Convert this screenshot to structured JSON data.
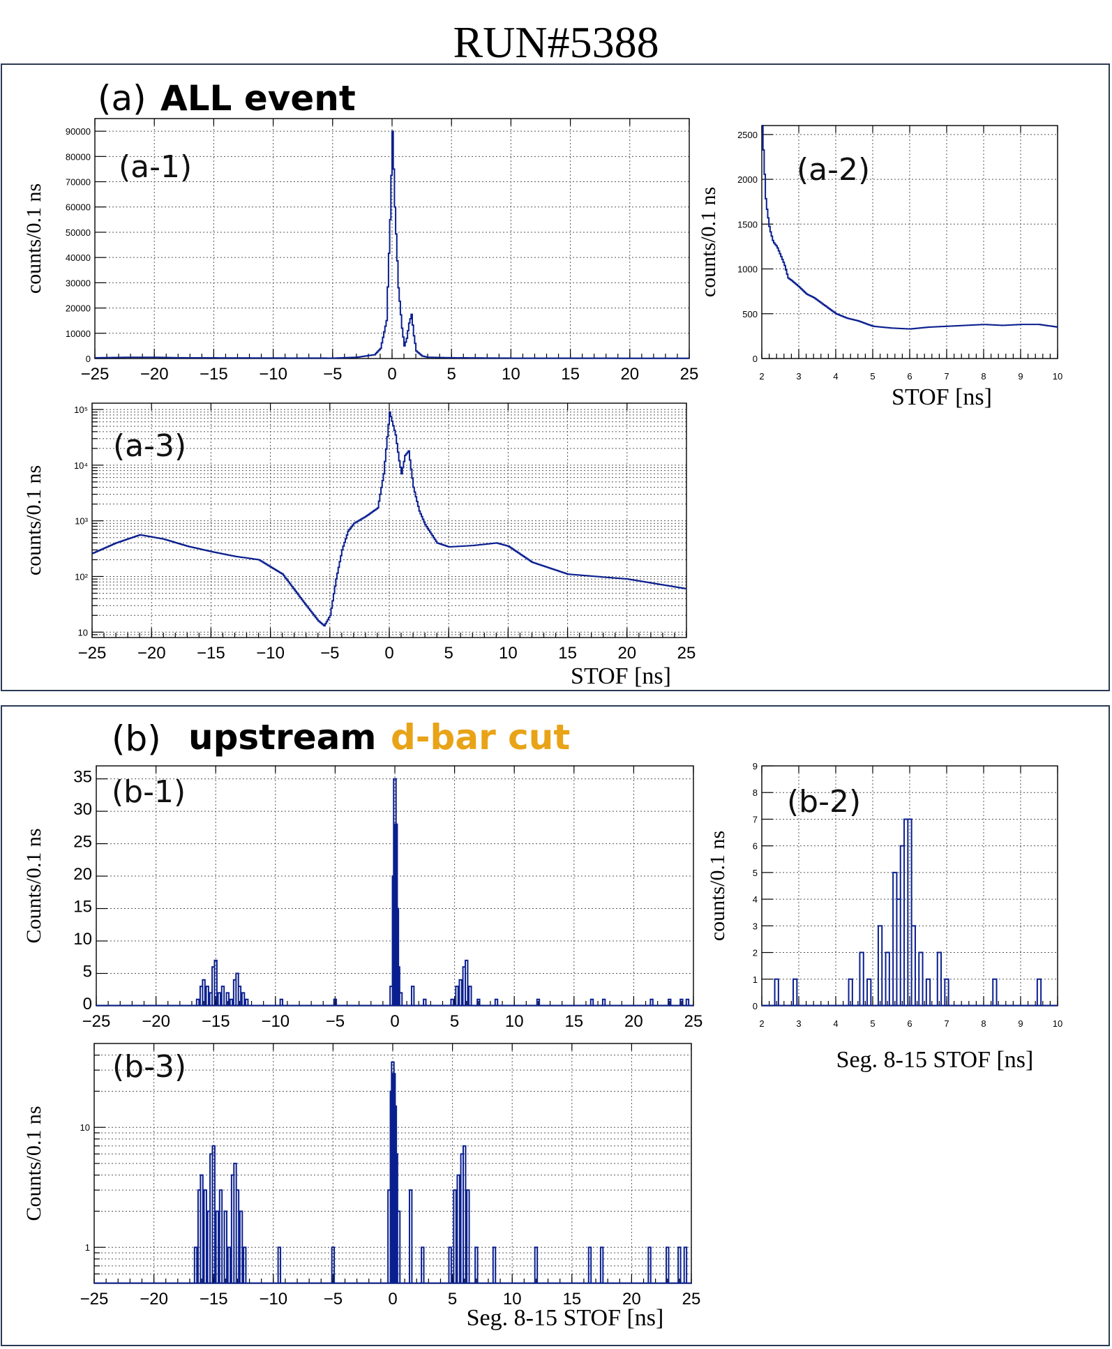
{
  "figure": {
    "title": "RUN#5388",
    "section_a": {
      "label": "(a)",
      "title": "ALL event",
      "title_color": "#000000"
    },
    "section_b": {
      "label": "(b)",
      "title_part1": "upstream",
      "title_part2": "d-bar cut",
      "title_part1_color": "#000000",
      "title_part2_color": "#e8a317"
    },
    "colors": {
      "histogram": "#0a1f8f",
      "frame": "#000000",
      "grid": "#555555"
    }
  },
  "chart_data": [
    {
      "id": "a1",
      "panel_label": "(a-1)",
      "type": "histogram",
      "yscale": "linear",
      "ylabel": "counts/0.1 ns",
      "xlabel": "",
      "xlim": [
        -25,
        25
      ],
      "ylim": [
        0,
        95000
      ],
      "xticks": [
        -25,
        -20,
        -15,
        -10,
        -5,
        0,
        5,
        10,
        15,
        20,
        25
      ],
      "xtick_labels": [
        "−25",
        "−20",
        "−15",
        "−10",
        "−5",
        "0",
        "5",
        "10",
        "15",
        "20",
        "25"
      ],
      "yticks": [
        0,
        10000,
        20000,
        30000,
        40000,
        50000,
        60000,
        70000,
        80000,
        90000
      ],
      "ytick_labels": [
        "0",
        "10000",
        "20000",
        "30000",
        "40000",
        "50000",
        "60000",
        "70000",
        "80000",
        "90000"
      ],
      "series": [
        {
          "x": [
            -25,
            -22,
            -20,
            -18,
            -10,
            -5,
            -3,
            -1.5,
            -1,
            -0.5,
            -0.2,
            0,
            0.2,
            0.5,
            0.8,
            1,
            1.2,
            1.4,
            1.6,
            1.8,
            2,
            2.5,
            3,
            5,
            10,
            25
          ],
          "y": [
            300,
            500,
            500,
            300,
            200,
            150,
            500,
            1500,
            4000,
            15000,
            55000,
            90000,
            60000,
            28000,
            12000,
            5000,
            8000,
            14000,
            17500,
            9000,
            3000,
            1000,
            500,
            300,
            150,
            100
          ]
        }
      ]
    },
    {
      "id": "a2",
      "panel_label": "(a-2)",
      "type": "histogram",
      "yscale": "linear",
      "ylabel": "counts/0.1 ns",
      "xlabel": "STOF    [ns]",
      "xlim": [
        2,
        10
      ],
      "ylim": [
        0,
        2600
      ],
      "xticks": [
        2,
        3,
        4,
        5,
        6,
        7,
        8,
        9,
        10
      ],
      "xtick_labels": [
        "2",
        "3",
        "4",
        "5",
        "6",
        "7",
        "8",
        "9",
        "10"
      ],
      "yticks": [
        0,
        500,
        1000,
        1500,
        2000,
        2500
      ],
      "ytick_labels": [
        "0",
        "500",
        "1000",
        "1500",
        "2000",
        "2500"
      ],
      "series": [
        {
          "x": [
            2,
            2.1,
            2.2,
            2.3,
            2.4,
            2.5,
            2.6,
            2.7,
            2.8,
            3,
            3.2,
            3.4,
            3.6,
            3.8,
            4,
            4.3,
            4.6,
            5,
            5.5,
            6,
            6.5,
            7,
            7.5,
            8,
            8.5,
            9,
            9.5,
            10
          ],
          "y": [
            2600,
            1750,
            1450,
            1300,
            1250,
            1150,
            1050,
            900,
            870,
            800,
            720,
            680,
            620,
            560,
            500,
            450,
            420,
            360,
            340,
            330,
            350,
            360,
            370,
            380,
            370,
            380,
            380,
            350
          ]
        }
      ]
    },
    {
      "id": "a3",
      "panel_label": "(a-3)",
      "type": "histogram",
      "yscale": "log",
      "ylabel": "counts/0.1 ns",
      "xlabel": "STOF    [ns]",
      "xlim": [
        -25,
        25
      ],
      "ylim": [
        8,
        130000
      ],
      "xticks": [
        -25,
        -20,
        -15,
        -10,
        -5,
        0,
        5,
        10,
        15,
        20,
        25
      ],
      "xtick_labels": [
        "−25",
        "−20",
        "−15",
        "−10",
        "−5",
        "0",
        "5",
        "10",
        "15",
        "20",
        "25"
      ],
      "yticks": [
        10,
        100,
        1000,
        10000,
        100000
      ],
      "ytick_labels": [
        "10",
        "10²",
        "10³",
        "10⁴",
        "10⁵"
      ],
      "series": [
        {
          "x": [
            -25,
            -23,
            -21,
            -19,
            -17,
            -15,
            -13,
            -11,
            -9,
            -7,
            -6,
            -5.5,
            -5,
            -4.5,
            -4,
            -3.5,
            -3,
            -2,
            -1,
            -0.5,
            0,
            0.5,
            0.8,
            1,
            1.3,
            1.6,
            2,
            2.5,
            3,
            4,
            5,
            7,
            9,
            10,
            12,
            15,
            20,
            25
          ],
          "y": [
            260,
            400,
            560,
            470,
            350,
            280,
            230,
            200,
            110,
            30,
            16,
            13,
            20,
            90,
            300,
            650,
            900,
            1200,
            1700,
            7000,
            90000,
            35000,
            12000,
            7000,
            15000,
            18000,
            4000,
            1500,
            850,
            400,
            340,
            360,
            400,
            350,
            180,
            110,
            90,
            60
          ]
        }
      ]
    },
    {
      "id": "b1",
      "panel_label": "(b-1)",
      "type": "histogram",
      "yscale": "linear",
      "ylabel": "Counts/0.1 ns",
      "xlabel": "",
      "xlim": [
        -25,
        25
      ],
      "ylim": [
        0,
        37
      ],
      "xticks": [
        -25,
        -20,
        -15,
        -10,
        -5,
        0,
        5,
        10,
        15,
        20,
        25
      ],
      "xtick_labels": [
        "−25",
        "−20",
        "−15",
        "−10",
        "−5",
        "0",
        "5",
        "10",
        "15",
        "20",
        "25"
      ],
      "yticks": [
        0,
        5,
        10,
        15,
        20,
        25,
        30,
        35
      ],
      "ytick_labels": [
        "0",
        "5",
        "10",
        "15",
        "20",
        "25",
        "30",
        "35"
      ],
      "series": [
        {
          "x": [
            -16.5,
            -16.2,
            -16,
            -15.7,
            -15.4,
            -15.2,
            -15,
            -14.7,
            -14.4,
            -14,
            -13.7,
            -13.4,
            -13.2,
            -13,
            -12.7,
            -12.4,
            -9.5,
            -5,
            -0.3,
            -0.1,
            0,
            0.1,
            0.2,
            0.3,
            0.5,
            1.5,
            2.5,
            4.8,
            5.2,
            5.5,
            5.8,
            6,
            6.3,
            7,
            8.5,
            12,
            16.5,
            17.5,
            21.5,
            23,
            24,
            24.5
          ],
          "y": [
            1,
            3,
            4,
            3,
            2,
            6,
            7,
            2,
            3,
            2,
            1,
            4,
            5,
            3,
            2,
            1,
            1,
            1,
            3,
            20,
            35,
            28,
            15,
            6,
            2,
            3,
            1,
            1,
            3,
            4,
            6,
            7,
            3,
            1,
            1,
            1,
            1,
            1,
            1,
            1,
            1,
            1
          ]
        }
      ]
    },
    {
      "id": "b2",
      "panel_label": "(b-2)",
      "type": "histogram",
      "yscale": "linear",
      "ylabel": "counts/0.1 ns",
      "xlabel": "Seg. 8-15  STOF    [ns]",
      "xlim": [
        2,
        10
      ],
      "ylim": [
        0,
        9
      ],
      "xticks": [
        2,
        3,
        4,
        5,
        6,
        7,
        8,
        9,
        10
      ],
      "xtick_labels": [
        "2",
        "3",
        "4",
        "5",
        "6",
        "7",
        "8",
        "9",
        "10"
      ],
      "yticks": [
        0,
        1,
        2,
        3,
        4,
        5,
        6,
        7,
        8,
        9
      ],
      "ytick_labels": [
        "0",
        "1",
        "2",
        "3",
        "4",
        "5",
        "6",
        "7",
        "8",
        "9"
      ],
      "series": [
        {
          "x": [
            2.4,
            2.9,
            4.4,
            4.7,
            4.9,
            5.2,
            5.4,
            5.6,
            5.7,
            5.8,
            5.9,
            6,
            6.1,
            6.3,
            6.5,
            6.8,
            7,
            8.3,
            9.5
          ],
          "y": [
            1,
            1,
            1,
            2,
            1,
            3,
            2,
            5,
            4,
            6,
            7,
            7,
            3,
            2,
            1,
            2,
            1,
            1,
            1
          ]
        }
      ]
    },
    {
      "id": "b3",
      "panel_label": "(b-3)",
      "type": "histogram",
      "yscale": "log",
      "ylabel": "Counts/0.1 ns",
      "xlabel": "Seg. 8-15    STOF    [ns]",
      "xlim": [
        -25,
        25
      ],
      "ylim": [
        0.5,
        50
      ],
      "xticks": [
        -25,
        -20,
        -15,
        -10,
        -5,
        0,
        5,
        10,
        15,
        20,
        25
      ],
      "xtick_labels": [
        "−25",
        "−20",
        "−15",
        "−10",
        "−5",
        "0",
        "5",
        "10",
        "15",
        "20",
        "25"
      ],
      "yticks": [
        1,
        10
      ],
      "ytick_labels": [
        "1",
        "10"
      ],
      "series": [
        {
          "x": [
            -16.5,
            -16.2,
            -16,
            -15.7,
            -15.4,
            -15.2,
            -15,
            -14.7,
            -14.4,
            -14,
            -13.7,
            -13.4,
            -13.2,
            -13,
            -12.7,
            -12.4,
            -9.5,
            -5,
            -0.3,
            -0.1,
            0,
            0.1,
            0.2,
            0.3,
            0.5,
            1.5,
            2.5,
            4.8,
            5.2,
            5.5,
            5.8,
            6,
            6.3,
            7,
            8.5,
            12,
            16.5,
            17.5,
            21.5,
            23,
            24,
            24.5
          ],
          "y": [
            1,
            3,
            4,
            3,
            2,
            6,
            7,
            2,
            3,
            2,
            1,
            4,
            5,
            3,
            2,
            1,
            1,
            1,
            3,
            20,
            35,
            28,
            15,
            6,
            2,
            3,
            1,
            1,
            3,
            4,
            6,
            7,
            3,
            1,
            1,
            1,
            1,
            1,
            1,
            1,
            1,
            1
          ]
        }
      ]
    }
  ]
}
